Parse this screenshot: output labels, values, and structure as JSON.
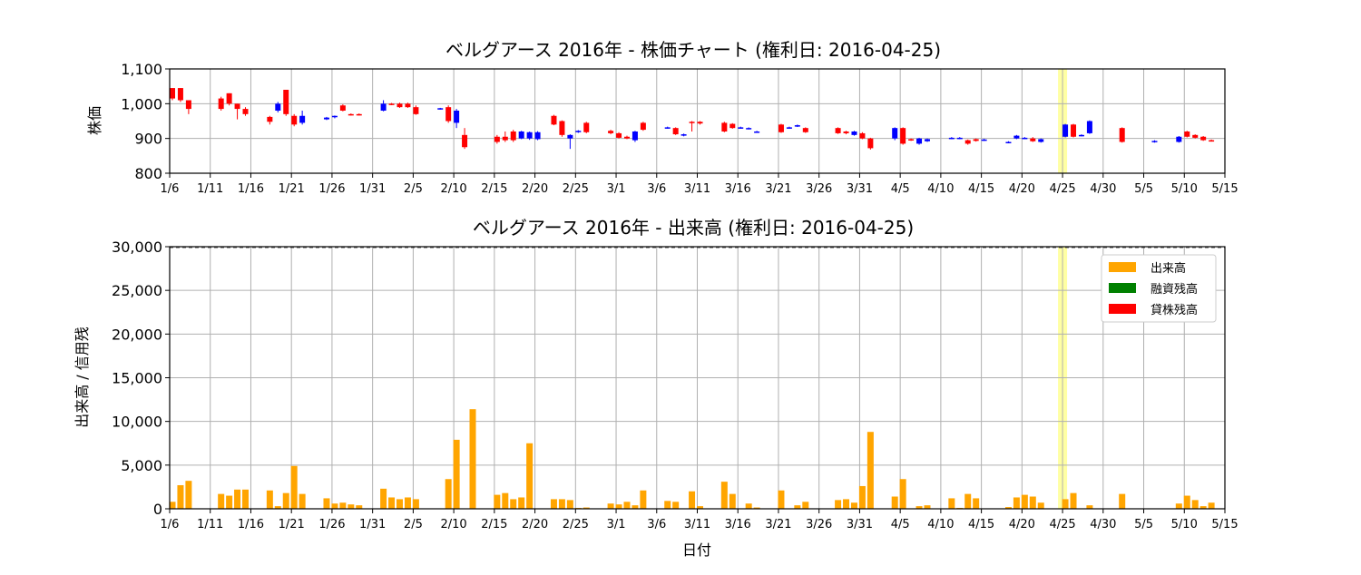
{
  "chart_data": [
    {
      "type": "candlestick",
      "title": "ベルグアース 2016年 - 株価チャート (権利日: 2016-04-25)",
      "xlabel": "",
      "ylabel": "株価",
      "ylim": [
        800,
        1100
      ],
      "yticks": [
        "800",
        "900",
        "1,000",
        "1,100"
      ],
      "xticks": [
        "1/6",
        "1/11",
        "1/16",
        "1/21",
        "1/26",
        "1/31",
        "2/5",
        "2/10",
        "2/15",
        "2/20",
        "2/25",
        "3/1",
        "3/6",
        "3/11",
        "3/16",
        "3/21",
        "3/26",
        "3/31",
        "4/5",
        "4/10",
        "4/15",
        "4/20",
        "4/25",
        "4/30",
        "5/5",
        "5/10",
        "5/15"
      ],
      "grid": true,
      "highlight": {
        "date": "4/25",
        "color": "#ffff66"
      },
      "colors": {
        "up": "#ff0000",
        "down": "#0000ff"
      },
      "candles": [
        {
          "d": 0,
          "o": 1045,
          "c": 1015,
          "h": 1045,
          "l": 1010
        },
        {
          "d": 1,
          "o": 1045,
          "c": 1010,
          "h": 1045,
          "l": 1005
        },
        {
          "d": 2,
          "o": 1010,
          "c": 985,
          "h": 1010,
          "l": 970
        },
        {
          "d": 6,
          "o": 1015,
          "c": 985,
          "h": 1020,
          "l": 980
        },
        {
          "d": 7,
          "o": 1030,
          "c": 1000,
          "h": 1030,
          "l": 995
        },
        {
          "d": 8,
          "o": 1000,
          "c": 985,
          "h": 1000,
          "l": 955
        },
        {
          "d": 9,
          "o": 985,
          "c": 970,
          "h": 990,
          "l": 965
        },
        {
          "d": 12,
          "o": 962,
          "c": 948,
          "h": 965,
          "l": 940
        },
        {
          "d": 13,
          "o": 980,
          "c": 1000,
          "h": 1005,
          "l": 975
        },
        {
          "d": 14,
          "o": 1040,
          "c": 970,
          "h": 1040,
          "l": 965
        },
        {
          "d": 15,
          "o": 965,
          "c": 940,
          "h": 970,
          "l": 935
        },
        {
          "d": 16,
          "o": 945,
          "c": 965,
          "h": 980,
          "l": 940
        },
        {
          "d": 19,
          "o": 955,
          "c": 960,
          "h": 962,
          "l": 953
        },
        {
          "d": 20,
          "o": 962,
          "c": 965,
          "h": 966,
          "l": 958
        },
        {
          "d": 21,
          "o": 995,
          "c": 980,
          "h": 998,
          "l": 978
        },
        {
          "d": 22,
          "o": 970,
          "c": 968,
          "h": 972,
          "l": 966
        },
        {
          "d": 23,
          "o": 970,
          "c": 968,
          "h": 972,
          "l": 966
        },
        {
          "d": 26,
          "o": 980,
          "c": 1000,
          "h": 1010,
          "l": 978
        },
        {
          "d": 27,
          "o": 1000,
          "c": 998,
          "h": 1002,
          "l": 996
        },
        {
          "d": 28,
          "o": 1000,
          "c": 990,
          "h": 1003,
          "l": 988
        },
        {
          "d": 29,
          "o": 1000,
          "c": 990,
          "h": 1003,
          "l": 988
        },
        {
          "d": 30,
          "o": 990,
          "c": 970,
          "h": 995,
          "l": 968
        },
        {
          "d": 33,
          "o": 985,
          "c": 987,
          "h": 988,
          "l": 983
        },
        {
          "d": 34,
          "o": 990,
          "c": 950,
          "h": 995,
          "l": 945
        },
        {
          "d": 35,
          "o": 945,
          "c": 980,
          "h": 985,
          "l": 930
        },
        {
          "d": 36,
          "o": 910,
          "c": 875,
          "h": 930,
          "l": 870
        },
        {
          "d": 40,
          "o": 905,
          "c": 890,
          "h": 910,
          "l": 885
        },
        {
          "d": 41,
          "o": 905,
          "c": 895,
          "h": 920,
          "l": 890
        },
        {
          "d": 42,
          "o": 920,
          "c": 895,
          "h": 925,
          "l": 890
        },
        {
          "d": 43,
          "o": 900,
          "c": 920,
          "h": 922,
          "l": 898
        },
        {
          "d": 44,
          "o": 900,
          "c": 918,
          "h": 920,
          "l": 896
        },
        {
          "d": 45,
          "o": 898,
          "c": 918,
          "h": 921,
          "l": 895
        },
        {
          "d": 47,
          "o": 965,
          "c": 940,
          "h": 968,
          "l": 938
        },
        {
          "d": 48,
          "o": 950,
          "c": 910,
          "h": 952,
          "l": 905
        },
        {
          "d": 49,
          "o": 900,
          "c": 910,
          "h": 912,
          "l": 870
        },
        {
          "d": 50,
          "o": 918,
          "c": 922,
          "h": 924,
          "l": 916
        },
        {
          "d": 51,
          "o": 945,
          "c": 918,
          "h": 948,
          "l": 915
        },
        {
          "d": 54,
          "o": 922,
          "c": 915,
          "h": 925,
          "l": 912
        },
        {
          "d": 55,
          "o": 915,
          "c": 902,
          "h": 918,
          "l": 900
        },
        {
          "d": 56,
          "o": 905,
          "c": 900,
          "h": 908,
          "l": 898
        },
        {
          "d": 57,
          "o": 895,
          "c": 920,
          "h": 922,
          "l": 890
        },
        {
          "d": 58,
          "o": 945,
          "c": 925,
          "h": 948,
          "l": 922
        },
        {
          "d": 61,
          "o": 930,
          "c": 932,
          "h": 934,
          "l": 928
        },
        {
          "d": 62,
          "o": 930,
          "c": 912,
          "h": 932,
          "l": 910
        },
        {
          "d": 63,
          "o": 908,
          "c": 912,
          "h": 914,
          "l": 906
        },
        {
          "d": 64,
          "o": 948,
          "c": 945,
          "h": 950,
          "l": 920
        },
        {
          "d": 65,
          "o": 948,
          "c": 943,
          "h": 950,
          "l": 940
        },
        {
          "d": 68,
          "o": 945,
          "c": 920,
          "h": 948,
          "l": 918
        },
        {
          "d": 69,
          "o": 942,
          "c": 930,
          "h": 944,
          "l": 928
        },
        {
          "d": 70,
          "o": 930,
          "c": 932,
          "h": 934,
          "l": 928
        },
        {
          "d": 71,
          "o": 928,
          "c": 930,
          "h": 932,
          "l": 926
        },
        {
          "d": 72,
          "o": 918,
          "c": 920,
          "h": 922,
          "l": 916
        },
        {
          "d": 75,
          "o": 940,
          "c": 918,
          "h": 942,
          "l": 916
        },
        {
          "d": 76,
          "o": 930,
          "c": 932,
          "h": 934,
          "l": 928
        },
        {
          "d": 77,
          "o": 935,
          "c": 938,
          "h": 940,
          "l": 933
        },
        {
          "d": 78,
          "o": 930,
          "c": 918,
          "h": 932,
          "l": 916
        },
        {
          "d": 82,
          "o": 930,
          "c": 915,
          "h": 932,
          "l": 913
        },
        {
          "d": 83,
          "o": 920,
          "c": 915,
          "h": 922,
          "l": 912
        },
        {
          "d": 84,
          "o": 910,
          "c": 920,
          "h": 922,
          "l": 908
        },
        {
          "d": 85,
          "o": 915,
          "c": 900,
          "h": 918,
          "l": 898
        },
        {
          "d": 86,
          "o": 900,
          "c": 872,
          "h": 902,
          "l": 868
        },
        {
          "d": 89,
          "o": 900,
          "c": 930,
          "h": 932,
          "l": 895
        },
        {
          "d": 90,
          "o": 930,
          "c": 885,
          "h": 932,
          "l": 882
        },
        {
          "d": 91,
          "o": 898,
          "c": 895,
          "h": 900,
          "l": 893
        },
        {
          "d": 92,
          "o": 885,
          "c": 900,
          "h": 902,
          "l": 882
        },
        {
          "d": 93,
          "o": 892,
          "c": 898,
          "h": 900,
          "l": 890
        },
        {
          "d": 96,
          "o": 900,
          "c": 902,
          "h": 904,
          "l": 898
        },
        {
          "d": 97,
          "o": 900,
          "c": 902,
          "h": 904,
          "l": 898
        },
        {
          "d": 98,
          "o": 895,
          "c": 885,
          "h": 897,
          "l": 882
        },
        {
          "d": 99,
          "o": 898,
          "c": 893,
          "h": 900,
          "l": 891
        },
        {
          "d": 100,
          "o": 895,
          "c": 897,
          "h": 899,
          "l": 893
        },
        {
          "d": 103,
          "o": 888,
          "c": 890,
          "h": 892,
          "l": 886
        },
        {
          "d": 104,
          "o": 900,
          "c": 908,
          "h": 910,
          "l": 898
        },
        {
          "d": 105,
          "o": 900,
          "c": 902,
          "h": 904,
          "l": 898
        },
        {
          "d": 106,
          "o": 900,
          "c": 892,
          "h": 904,
          "l": 890
        },
        {
          "d": 107,
          "o": 890,
          "c": 898,
          "h": 900,
          "l": 888
        },
        {
          "d": 110,
          "o": 905,
          "c": 940,
          "h": 942,
          "l": 903
        },
        {
          "d": 111,
          "o": 940,
          "c": 905,
          "h": 942,
          "l": 903
        },
        {
          "d": 112,
          "o": 908,
          "c": 910,
          "h": 912,
          "l": 906
        },
        {
          "d": 113,
          "o": 915,
          "c": 950,
          "h": 952,
          "l": 913
        },
        {
          "d": 117,
          "o": 930,
          "c": 890,
          "h": 932,
          "l": 888
        },
        {
          "d": 121,
          "o": 890,
          "c": 893,
          "h": 895,
          "l": 888
        },
        {
          "d": 124,
          "o": 890,
          "c": 905,
          "h": 907,
          "l": 888
        },
        {
          "d": 125,
          "o": 920,
          "c": 905,
          "h": 922,
          "l": 903
        },
        {
          "d": 126,
          "o": 910,
          "c": 902,
          "h": 912,
          "l": 900
        },
        {
          "d": 127,
          "o": 905,
          "c": 895,
          "h": 907,
          "l": 893
        },
        {
          "d": 128,
          "o": 895,
          "c": 893,
          "h": 897,
          "l": 891
        }
      ]
    },
    {
      "type": "bar",
      "title": "ベルグアース 2016年 - 出来高 (権利日: 2016-04-25)",
      "xlabel": "日付",
      "ylabel": "出来高 / 信用残",
      "ylim": [
        0,
        30000
      ],
      "yticks": [
        "0",
        "5,000",
        "10,000",
        "15,000",
        "20,000",
        "25,000",
        "30,000"
      ],
      "xticks": [
        "1/6",
        "1/11",
        "1/16",
        "1/21",
        "1/26",
        "1/31",
        "2/5",
        "2/10",
        "2/15",
        "2/20",
        "2/25",
        "3/1",
        "3/6",
        "3/11",
        "3/16",
        "3/21",
        "3/26",
        "3/31",
        "4/5",
        "4/10",
        "4/15",
        "4/20",
        "4/25",
        "4/30",
        "5/5",
        "5/10",
        "5/15"
      ],
      "legend": {
        "position": "top-right",
        "entries": [
          {
            "label": "出来高",
            "color": "#ffa500"
          },
          {
            "label": "融資残高",
            "color": "#008000"
          },
          {
            "label": "貸株残高",
            "color": "#ff0000"
          }
        ]
      },
      "volume": [
        {
          "d": 0,
          "v": 800
        },
        {
          "d": 1,
          "v": 2700
        },
        {
          "d": 2,
          "v": 3200
        },
        {
          "d": 6,
          "v": 1700
        },
        {
          "d": 7,
          "v": 1500
        },
        {
          "d": 8,
          "v": 2200
        },
        {
          "d": 9,
          "v": 2200
        },
        {
          "d": 12,
          "v": 2100
        },
        {
          "d": 13,
          "v": 300
        },
        {
          "d": 14,
          "v": 1800
        },
        {
          "d": 15,
          "v": 4900
        },
        {
          "d": 16,
          "v": 1700
        },
        {
          "d": 19,
          "v": 1200
        },
        {
          "d": 20,
          "v": 600
        },
        {
          "d": 21,
          "v": 700
        },
        {
          "d": 22,
          "v": 500
        },
        {
          "d": 23,
          "v": 400
        },
        {
          "d": 26,
          "v": 2300
        },
        {
          "d": 27,
          "v": 1300
        },
        {
          "d": 28,
          "v": 1100
        },
        {
          "d": 29,
          "v": 1300
        },
        {
          "d": 30,
          "v": 1100
        },
        {
          "d": 34,
          "v": 3400
        },
        {
          "d": 35,
          "v": 7900
        },
        {
          "d": 37,
          "v": 11400
        },
        {
          "d": 40,
          "v": 1600
        },
        {
          "d": 41,
          "v": 1800
        },
        {
          "d": 42,
          "v": 1100
        },
        {
          "d": 43,
          "v": 1300
        },
        {
          "d": 44,
          "v": 7500
        },
        {
          "d": 47,
          "v": 1100
        },
        {
          "d": 48,
          "v": 1100
        },
        {
          "d": 49,
          "v": 1000
        },
        {
          "d": 50,
          "v": 100
        },
        {
          "d": 51,
          "v": 150
        },
        {
          "d": 54,
          "v": 600
        },
        {
          "d": 55,
          "v": 500
        },
        {
          "d": 56,
          "v": 800
        },
        {
          "d": 57,
          "v": 400
        },
        {
          "d": 58,
          "v": 2100
        },
        {
          "d": 61,
          "v": 900
        },
        {
          "d": 62,
          "v": 800
        },
        {
          "d": 64,
          "v": 2000
        },
        {
          "d": 65,
          "v": 300
        },
        {
          "d": 68,
          "v": 3100
        },
        {
          "d": 69,
          "v": 1700
        },
        {
          "d": 71,
          "v": 600
        },
        {
          "d": 72,
          "v": 150
        },
        {
          "d": 75,
          "v": 2100
        },
        {
          "d": 77,
          "v": 400
        },
        {
          "d": 78,
          "v": 800
        },
        {
          "d": 82,
          "v": 1000
        },
        {
          "d": 83,
          "v": 1100
        },
        {
          "d": 84,
          "v": 700
        },
        {
          "d": 85,
          "v": 2600
        },
        {
          "d": 86,
          "v": 8800
        },
        {
          "d": 89,
          "v": 1400
        },
        {
          "d": 90,
          "v": 3400
        },
        {
          "d": 92,
          "v": 300
        },
        {
          "d": 93,
          "v": 400
        },
        {
          "d": 96,
          "v": 1200
        },
        {
          "d": 97,
          "v": 100
        },
        {
          "d": 98,
          "v": 1700
        },
        {
          "d": 99,
          "v": 1200
        },
        {
          "d": 103,
          "v": 200
        },
        {
          "d": 104,
          "v": 1300
        },
        {
          "d": 105,
          "v": 1600
        },
        {
          "d": 106,
          "v": 1400
        },
        {
          "d": 107,
          "v": 700
        },
        {
          "d": 110,
          "v": 1100
        },
        {
          "d": 111,
          "v": 1800
        },
        {
          "d": 113,
          "v": 400
        },
        {
          "d": 117,
          "v": 1700
        },
        {
          "d": 124,
          "v": 600
        },
        {
          "d": 125,
          "v": 1500
        },
        {
          "d": 126,
          "v": 1000
        },
        {
          "d": 127,
          "v": 300
        },
        {
          "d": 128,
          "v": 700
        }
      ]
    }
  ]
}
